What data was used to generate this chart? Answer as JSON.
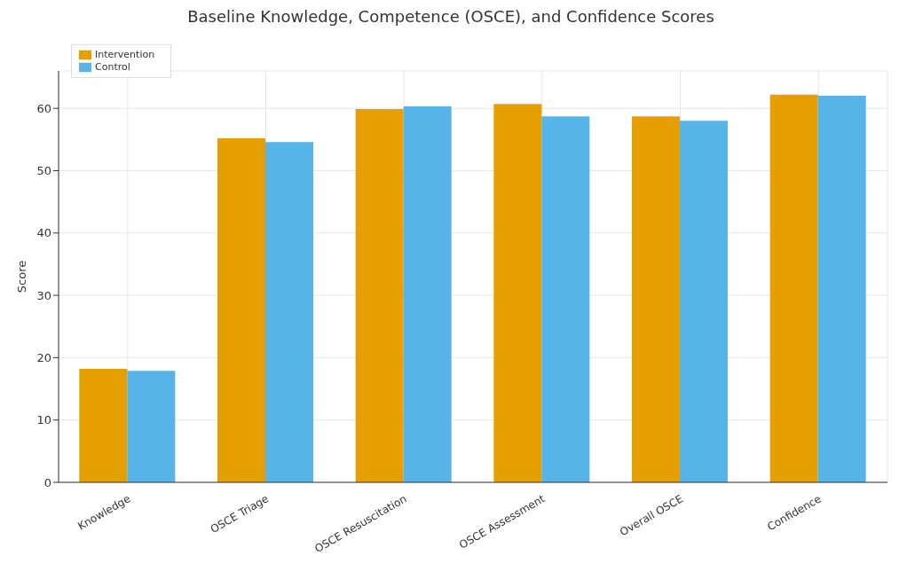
{
  "chart_data": {
    "type": "bar",
    "title": "Baseline Knowledge, Competence (OSCE), and Confidence Scores",
    "ylabel": "Score",
    "categories": [
      "Knowledge",
      "OSCE Triage",
      "OSCE Resuscitation",
      "OSCE Assessment",
      "Overall OSCE",
      "Confidence"
    ],
    "series": [
      {
        "name": "Intervention",
        "color": "#e69f00",
        "values": [
          18.2,
          55.2,
          59.9,
          60.7,
          58.7,
          62.2
        ]
      },
      {
        "name": "Control",
        "color": "#56b4e9",
        "values": [
          17.9,
          54.6,
          60.3,
          58.7,
          58.0,
          62.0
        ]
      }
    ],
    "ylim": [
      0,
      66
    ],
    "yticks": [
      0,
      10,
      20,
      30,
      40,
      50,
      60
    ],
    "grid": true,
    "legend": "top left"
  }
}
